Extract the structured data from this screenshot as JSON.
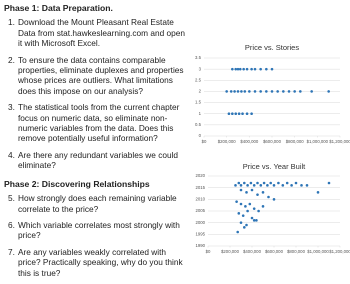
{
  "document": {
    "sections": [
      {
        "title": "Phase 1: Data Preparation.",
        "items": [
          {
            "number": "1.",
            "text": "Download the Mount Pleasant Real Estate Data from stat.hawkeslearning.com and open it with Microsoft Excel."
          },
          {
            "number": "2.",
            "text": "To ensure the data contains comparable properties, eliminate duplexes and properties whose prices are outliers. What limitations does this impose on our analysis?"
          },
          {
            "number": "3.",
            "text": "The statistical tools from the current chapter focus on numeric data, so eliminate non-numeric variables from the data. Does this remove potentially useful information?"
          },
          {
            "number": "4.",
            "text": "Are there any redundant variables we could eliminate?"
          }
        ]
      },
      {
        "title": "Phase 2: Discovering Relationships",
        "items": [
          {
            "number": "5.",
            "text": "How strongly does each remaining variable correlate to the price?"
          },
          {
            "number": "6.",
            "text": "Which variable correlates most strongly with price?"
          },
          {
            "number": "7.",
            "text": "Are any variables weakly correlated with price? Practically speaking, why do you think this is true?"
          }
        ]
      }
    ]
  },
  "chart_data": [
    {
      "type": "scatter",
      "title": "Price vs. Stories",
      "color": "#2e75b6",
      "grid": true,
      "x": [
        250000,
        280000,
        300000,
        320000,
        350000,
        380000,
        420000,
        450000,
        500000,
        550000,
        600000,
        200000,
        240000,
        270000,
        300000,
        330000,
        360000,
        400000,
        450000,
        500000,
        550000,
        600000,
        650000,
        700000,
        750000,
        800000,
        850000,
        950000,
        1100000,
        220000,
        250000,
        280000,
        310000,
        340000,
        380000,
        420000
      ],
      "values": [
        3,
        3,
        3,
        3,
        3,
        3,
        3,
        3,
        3,
        3,
        3,
        2,
        2,
        2,
        2,
        2,
        2,
        2,
        2,
        2,
        2,
        2,
        2,
        2,
        2,
        2,
        2,
        2,
        2,
        1,
        1,
        1,
        1,
        1,
        1,
        1
      ],
      "xlim": [
        0,
        1200000
      ],
      "xticks": [
        {
          "value": 0,
          "label": "$0"
        },
        {
          "value": 200000,
          "label": "$200,000"
        },
        {
          "value": 400000,
          "label": "$400,000"
        },
        {
          "value": 600000,
          "label": "$600,000"
        },
        {
          "value": 800000,
          "label": "$800,000"
        },
        {
          "value": 1000000,
          "label": "$1,000,000"
        },
        {
          "value": 1200000,
          "label": "$1,200,000"
        }
      ],
      "ylim": [
        0,
        3.5
      ],
      "yticks": [
        0,
        0.5,
        1,
        1.5,
        2,
        2.5,
        3,
        3.5
      ]
    },
    {
      "type": "scatter",
      "title": "Price vs. Year Built",
      "color": "#2e75b6",
      "grid": true,
      "x": [
        250000,
        280000,
        300000,
        330000,
        360000,
        390000,
        420000,
        450000,
        480000,
        510000,
        540000,
        570000,
        600000,
        640000,
        680000,
        720000,
        760000,
        800000,
        850000,
        300000,
        350000,
        400000,
        450000,
        500000,
        550000,
        600000,
        260000,
        300000,
        340000,
        380000,
        420000,
        460000,
        500000,
        280000,
        320000,
        360000,
        400000,
        440000,
        300000,
        350000,
        420000,
        270000,
        330000,
        900000,
        1100000,
        1000000
      ],
      "values": [
        2016,
        2017,
        2016,
        2017,
        2016,
        2017,
        2016,
        2017,
        2016,
        2017,
        2016,
        2017,
        2016,
        2017,
        2016,
        2017,
        2016,
        2017,
        2016,
        2014,
        2013,
        2014,
        2012,
        2013,
        2011,
        2010,
        2009,
        2008,
        2007,
        2008,
        2006,
        2005,
        2007,
        2004,
        2003,
        2005,
        2002,
        2001,
        2000,
        1999,
        2001,
        1996,
        1998,
        2016,
        2017,
        2013
      ],
      "xlim": [
        0,
        1200000
      ],
      "xticks": [
        {
          "value": 0,
          "label": "$0"
        },
        {
          "value": 200000,
          "label": "$200,000"
        },
        {
          "value": 400000,
          "label": "$400,000"
        },
        {
          "value": 600000,
          "label": "$600,000"
        },
        {
          "value": 800000,
          "label": "$800,000"
        },
        {
          "value": 1000000,
          "label": "$1,000,000"
        },
        {
          "value": 1200000,
          "label": "$1,200,000"
        }
      ],
      "ylim": [
        1990,
        2020
      ],
      "yticks": [
        1990,
        1995,
        2000,
        2005,
        2010,
        2015,
        2020
      ]
    }
  ]
}
